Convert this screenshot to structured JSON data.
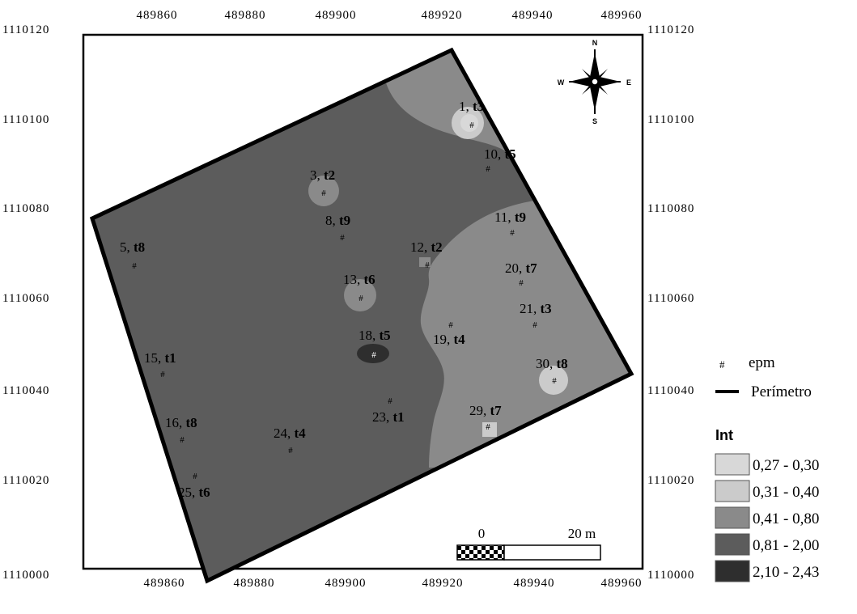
{
  "map": {
    "x_ticks": [
      "489860",
      "489880",
      "489900",
      "489920",
      "489940",
      "489960"
    ],
    "y_ticks": [
      "1110120",
      "1110100",
      "1110080",
      "1110060",
      "1110040",
      "1110020",
      "1110000"
    ]
  },
  "points": [
    {
      "n": "1",
      "t": "t3"
    },
    {
      "n": "10",
      "t": "t5"
    },
    {
      "n": "3",
      "t": "t2"
    },
    {
      "n": "11",
      "t": "t9"
    },
    {
      "n": "8",
      "t": "t9"
    },
    {
      "n": "5",
      "t": "t8"
    },
    {
      "n": "12",
      "t": "t2"
    },
    {
      "n": "20",
      "t": "t7"
    },
    {
      "n": "13",
      "t": "t6"
    },
    {
      "n": "21",
      "t": "t3"
    },
    {
      "n": "19",
      "t": "t4"
    },
    {
      "n": "18",
      "t": "t5"
    },
    {
      "n": "15",
      "t": "t1"
    },
    {
      "n": "30",
      "t": "t8"
    },
    {
      "n": "23",
      "t": "t1"
    },
    {
      "n": "29",
      "t": "t7"
    },
    {
      "n": "16",
      "t": "t8"
    },
    {
      "n": "24",
      "t": "t4"
    },
    {
      "n": "25",
      "t": "t6"
    }
  ],
  "point_symbol": "#",
  "compass": {
    "n": "N",
    "s": "S",
    "e": "E",
    "w": "W"
  },
  "scale_bar": {
    "start": "0",
    "end": "20 m"
  },
  "legend": {
    "epm_symbol": "#",
    "epm_label": "epm",
    "perimeter_label": "Perímetro",
    "title": "Int",
    "classes": [
      {
        "range": "0,27 - 0,30",
        "color": "#d8d8d8"
      },
      {
        "range": "0,31 - 0,40",
        "color": "#cbcbcb"
      },
      {
        "range": "0,41 - 0,80",
        "color": "#8a8a8a"
      },
      {
        "range": "0,81 - 2,00",
        "color": "#5c5c5c"
      },
      {
        "range": "2,10 - 2,43",
        "color": "#2e2e2e"
      }
    ]
  }
}
